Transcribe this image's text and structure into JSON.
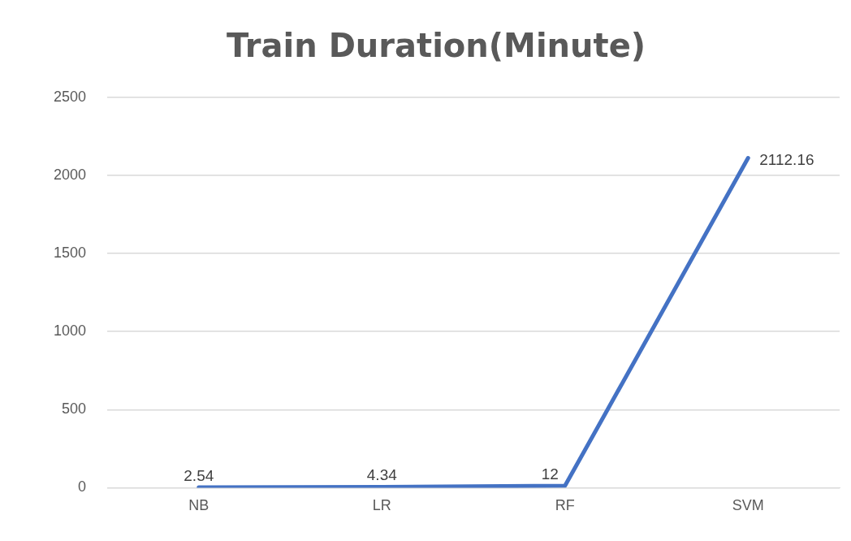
{
  "chart_data": {
    "type": "line",
    "title": "Train Duration(Minute)",
    "categories": [
      "NB",
      "LR",
      "RF",
      "SVM"
    ],
    "series": [
      {
        "color": "#4472c4",
        "values": [
          2.54,
          4.34,
          12,
          2112.16
        ]
      }
    ],
    "ylim": [
      0,
      2500
    ],
    "yticks": [
      0,
      500,
      1000,
      1500,
      2000,
      2500
    ],
    "grid": "y",
    "legend": false,
    "marker": "none",
    "line_style": "solid",
    "data_labels": true
  }
}
